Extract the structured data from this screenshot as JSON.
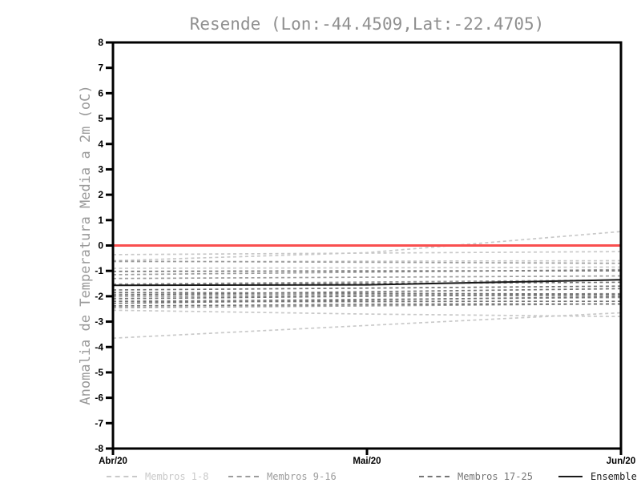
{
  "chart": {
    "title": "Resende (Lon:-44.4509,Lat:-22.4705)",
    "ylabel": "Anomalia de Temperatura Media a 2m (oC)"
  },
  "chart_data": {
    "type": "line",
    "title": "Resende (Lon:-44.4509,Lat:-22.4705)",
    "xlabel": "",
    "ylabel": "Anomalia de Temperatura Media a 2m (oC)",
    "x_categories": [
      "Abr/20",
      "Mai/20",
      "Jun/20"
    ],
    "ylim": [
      -8,
      8
    ],
    "ytick_step": 1,
    "ytick_labels": [
      "8",
      "7",
      "6",
      "5",
      "4",
      "3",
      "2",
      "1",
      "0",
      "-1",
      "-2",
      "-3",
      "-4",
      "-5",
      "-6",
      "-7",
      "-8"
    ],
    "grid": false,
    "legend_position": "bottom",
    "axis_color": "#000000",
    "zero_line": {
      "value": 0,
      "color": "#f94f4f"
    },
    "groups": [
      {
        "name": "Membros 1-8",
        "color": "#c9c9c9",
        "style": "dashed",
        "members": [
          [
            -0.36,
            -0.3,
            -0.24
          ],
          [
            -0.6,
            -0.28,
            0.55
          ],
          [
            -0.9,
            -0.88,
            -0.85
          ],
          [
            -3.65,
            -3.15,
            -2.65
          ],
          [
            -2.55,
            -2.7,
            -2.8
          ],
          [
            -1.9,
            -1.95,
            -2.0
          ],
          [
            -2.2,
            -2.25,
            -2.32
          ],
          [
            -0.64,
            -0.62,
            -0.6
          ]
        ]
      },
      {
        "name": "Membros 9-16",
        "color": "#9c9c9c",
        "style": "dashed",
        "members": [
          [
            -1.15,
            -1.05,
            -0.95
          ],
          [
            -1.95,
            -1.92,
            -1.9
          ],
          [
            -2.2,
            -2.12,
            -2.05
          ],
          [
            -2.45,
            -2.38,
            -2.3
          ],
          [
            -0.62,
            -0.66,
            -0.7
          ],
          [
            -1.52,
            -1.44,
            -1.36
          ],
          [
            -2.02,
            -1.98,
            -1.96
          ],
          [
            -1.3,
            -1.25,
            -1.2
          ]
        ]
      },
      {
        "name": "Membros 17-25",
        "color": "#757575",
        "style": "dashed",
        "members": [
          [
            -1.55,
            -1.5,
            -1.45
          ],
          [
            -1.75,
            -1.68,
            -1.6
          ],
          [
            -1.95,
            -1.82,
            -1.7
          ],
          [
            -2.1,
            -2.0,
            -1.92
          ],
          [
            -2.28,
            -2.14,
            -2.02
          ],
          [
            -2.38,
            -2.33,
            -2.3
          ],
          [
            -1.85,
            -1.88,
            -1.92
          ],
          [
            -2.2,
            -2.2,
            -2.2
          ],
          [
            -1.02,
            -1.0,
            -1.0
          ]
        ]
      },
      {
        "name": "Ensemble Mean",
        "color": "#1a1a1a",
        "style": "solid",
        "members": [
          [
            -1.57,
            -1.55,
            -1.35
          ]
        ]
      }
    ]
  }
}
